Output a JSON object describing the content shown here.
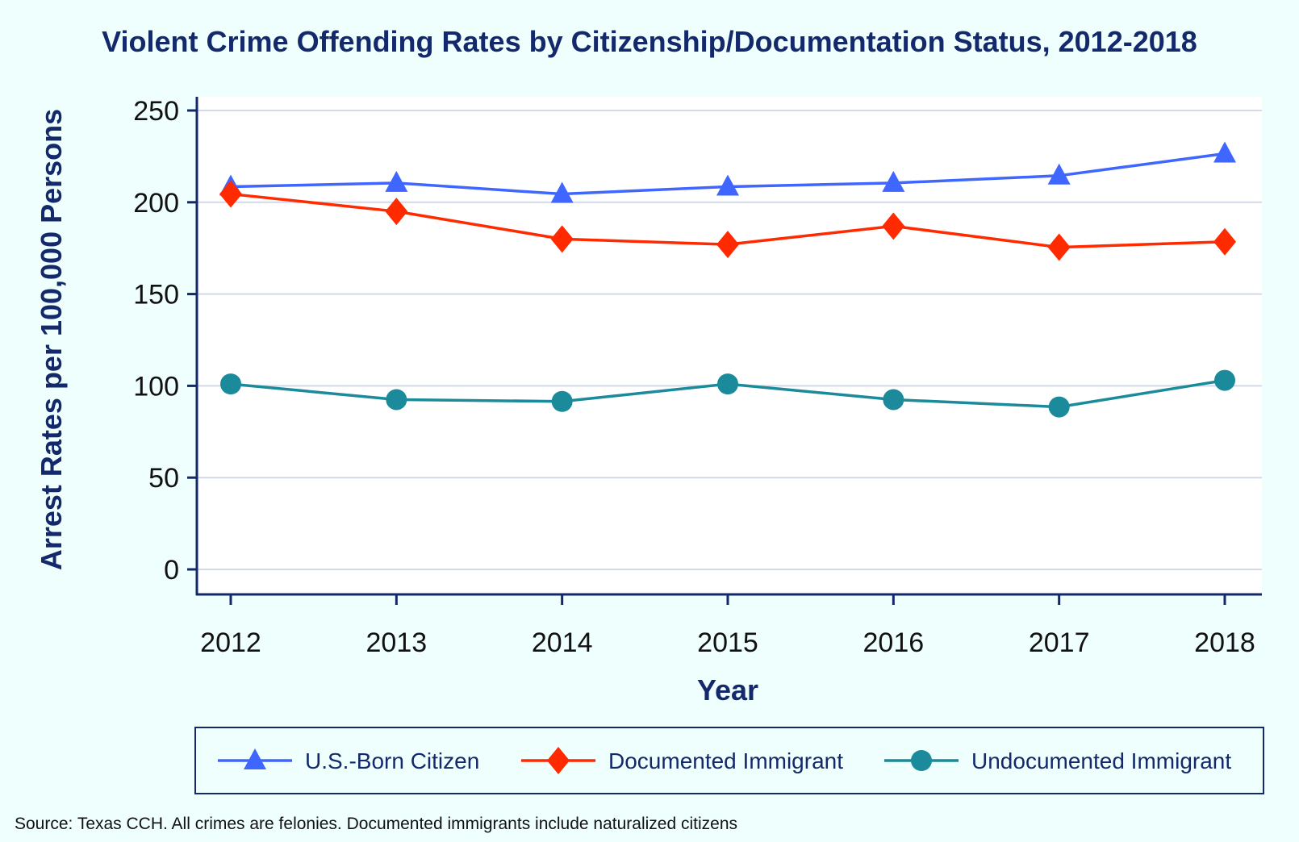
{
  "chart_data": {
    "type": "line",
    "title": "Violent Crime Offending Rates by Citizenship/Documentation Status, 2012-2018",
    "xlabel": "Year",
    "ylabel": "Arrest Rates per 100,000 Persons",
    "x": [
      2012,
      2013,
      2014,
      2015,
      2016,
      2017,
      2018
    ],
    "x_tick_labels": [
      "2012",
      "2013",
      "2014",
      "2015",
      "2016",
      "2017",
      "2018"
    ],
    "ylim": [
      0,
      250
    ],
    "y_ticks": [
      0,
      50,
      100,
      150,
      200,
      250
    ],
    "y_tick_labels": [
      "0",
      "50",
      "100",
      "150",
      "200",
      "250"
    ],
    "grid": true,
    "legend_placement": "bottom",
    "series": [
      {
        "name": "U.S.-Born Citizen",
        "color": "#3f66ff",
        "marker": "triangle",
        "values": [
          208.5,
          210.5,
          204.5,
          208.5,
          210.5,
          214.5,
          226.5
        ]
      },
      {
        "name": "Documented Immigrant",
        "color": "#ff2a00",
        "marker": "diamond",
        "values": [
          204.5,
          195,
          180,
          177,
          187,
          175.5,
          178.5
        ]
      },
      {
        "name": "Undocumented Immigrant",
        "color": "#1b8a9a",
        "marker": "circle",
        "values": [
          101,
          92.5,
          91.5,
          101,
          92.5,
          88.5,
          103
        ]
      }
    ],
    "source_note": "Source: Texas CCH. All crimes are felonies. Documented immigrants include naturalized citizens"
  },
  "colors": {
    "background": "#effffd",
    "axis": "#13296b",
    "grid": "#d3d9e6"
  }
}
